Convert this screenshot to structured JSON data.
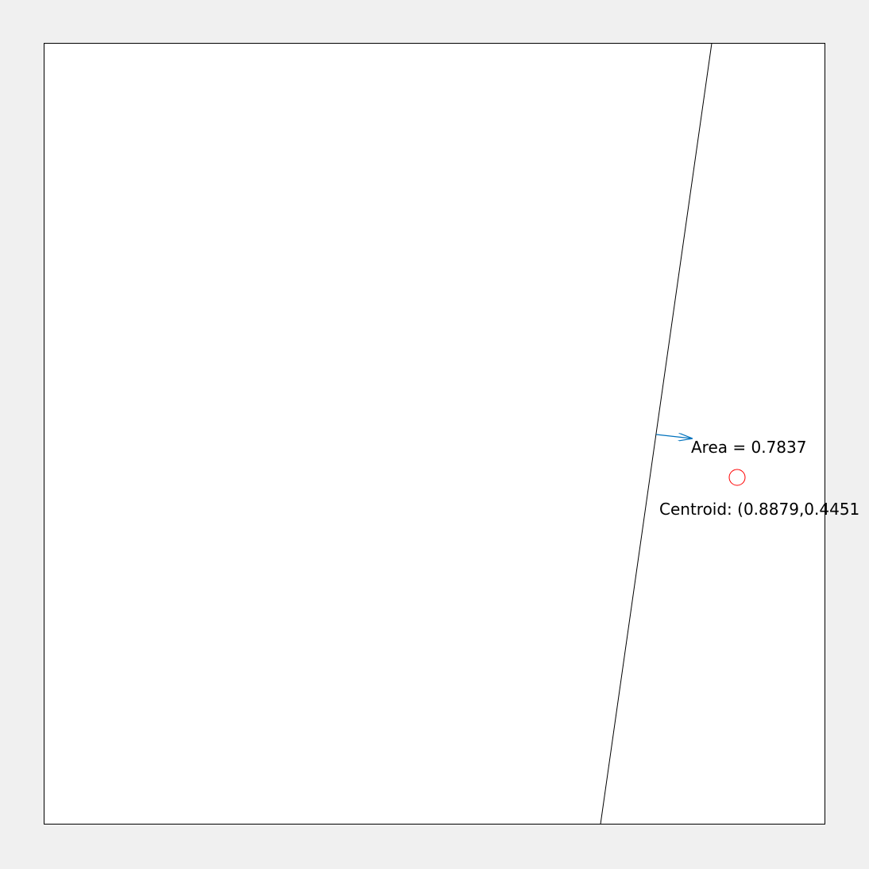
{
  "figure": {
    "background_color": "#f0f0f0",
    "plot_background_color": "#ffffff"
  },
  "polygon": {
    "stroke_color": "#000000"
  },
  "area_label": {
    "text": "Area = 0.7837"
  },
  "area_arrow": {
    "color": "#0072bd"
  },
  "centroid_marker": {
    "color": "#ff0000"
  },
  "centroid_label": {
    "text": "Centroid: (0.8879,0.4451"
  }
}
